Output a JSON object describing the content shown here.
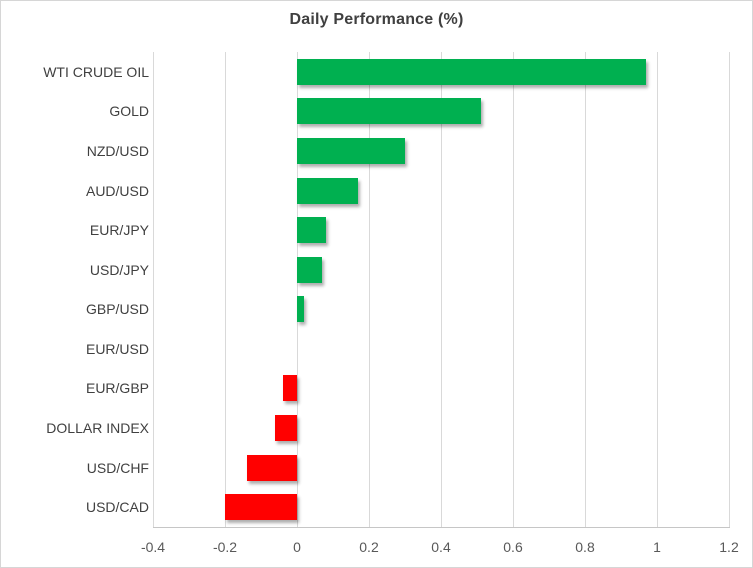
{
  "chart_data": {
    "type": "bar",
    "orientation": "horizontal",
    "title": "Daily Performance (%)",
    "xlabel": "",
    "ylabel": "",
    "categories": [
      "WTI CRUDE OIL",
      "GOLD",
      "NZD/USD",
      "AUD/USD",
      "EUR/JPY",
      "USD/JPY",
      "GBP/USD",
      "EUR/USD",
      "EUR/GBP",
      "DOLLAR INDEX",
      "USD/CHF",
      "USD/CAD"
    ],
    "values": [
      0.97,
      0.51,
      0.3,
      0.17,
      0.08,
      0.07,
      0.02,
      0.0,
      -0.04,
      -0.06,
      -0.14,
      -0.2
    ],
    "xlim": [
      -0.4,
      1.2
    ],
    "x_ticks": [
      -0.4,
      -0.2,
      0,
      0.2,
      0.4,
      0.6,
      0.8,
      1,
      1.2
    ],
    "x_tick_labels": [
      "-0.4",
      "-0.2",
      "0",
      "0.2",
      "0.4",
      "0.6",
      "0.8",
      "1",
      "1.2"
    ],
    "grid": true,
    "legend": false,
    "colors": {
      "positive": "#00B050",
      "negative": "#FF0000",
      "gridline": "#D9D9D9",
      "axis_line": "#C6C6C6",
      "title_text": "#404040",
      "category_text": "#404040",
      "tick_text": "#595959"
    }
  }
}
